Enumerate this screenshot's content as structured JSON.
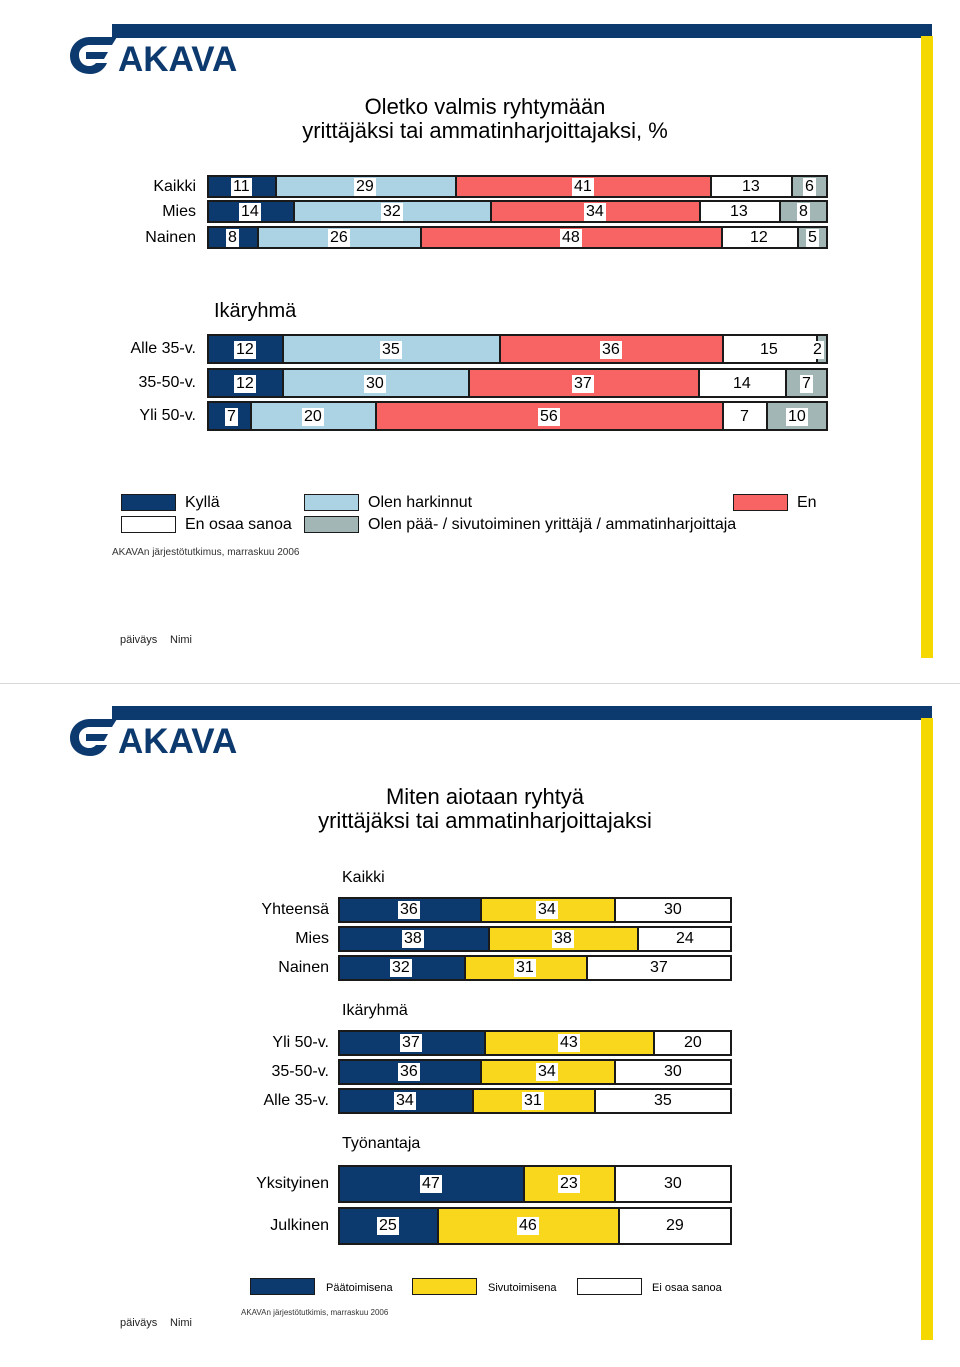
{
  "brand": {
    "logo_text": "AKAVA",
    "colors": {
      "navy": "#0d3a6e",
      "yellow": "#f5d800"
    }
  },
  "slide1": {
    "title_line1": "Oletko valmis ryhtymään",
    "title_line2": "yrittäjäksi tai ammatinharjoittajaksi, %",
    "age_heading": "Ikäryhmä",
    "source": "AKAVAn järjestötutkimus, marraskuu 2006",
    "footer_date": "päiväys",
    "footer_name": "Nimi",
    "legend": [
      {
        "label": "Kyllä",
        "color": "#0d3a6e"
      },
      {
        "label": "Olen harkinnut",
        "color": "#abd3e3"
      },
      {
        "label": "En",
        "color": "#f86464"
      },
      {
        "label": "En osaa sanoa",
        "color": "#ffffff"
      },
      {
        "label": "Olen pää- / sivutoiminen yrittäjä / ammatinharjoittaja",
        "color": "#a2b6b5"
      }
    ]
  },
  "slide2": {
    "title_line1": "Miten aiotaan ryhtyä",
    "title_line2": "yrittäjäksi tai ammatinharjoittajaksi",
    "group_total": "Kaikki",
    "group_age": "Ikäryhmä",
    "group_employer": "Työnantaja",
    "source": "AKAVAn järjestötutkimis, marraskuu 2006",
    "footer_date": "päiväys",
    "footer_name": "Nimi",
    "legend": [
      {
        "label": "Päätoimisena",
        "color": "#0d3a6e"
      },
      {
        "label": "Sivutoimisena",
        "color": "#f9d71c"
      },
      {
        "label": "Ei osaa sanoa",
        "color": "#ffffff"
      }
    ]
  },
  "chart_data": [
    {
      "type": "bar",
      "orientation": "horizontal",
      "stacked": true,
      "percent": true,
      "title": "Oletko valmis ryhtymään yrittäjäksi tai ammatinharjoittajaksi, %",
      "series": [
        {
          "name": "Kyllä",
          "color": "#0d3a6e"
        },
        {
          "name": "Olen harkinnut",
          "color": "#abd3e3"
        },
        {
          "name": "En",
          "color": "#f86464"
        },
        {
          "name": "En osaa sanoa",
          "color": "#ffffff"
        },
        {
          "name": "Olen pää- / sivutoiminen yrittäjä / ammatinharjoittaja",
          "color": "#a2b6b5"
        }
      ],
      "groups": [
        {
          "heading": "",
          "rows": [
            {
              "label": "Kaikki",
              "values": [
                11,
                29,
                41,
                13,
                6
              ]
            },
            {
              "label": "Mies",
              "values": [
                14,
                32,
                34,
                13,
                8
              ]
            },
            {
              "label": "Nainen",
              "values": [
                8,
                26,
                48,
                12,
                5
              ]
            }
          ]
        },
        {
          "heading": "Ikäryhmä",
          "rows": [
            {
              "label": "Alle 35-v.",
              "values": [
                12,
                35,
                36,
                15,
                2
              ]
            },
            {
              "label": "35-50-v.",
              "values": [
                12,
                30,
                37,
                14,
                7
              ]
            },
            {
              "label": "Yli 50-v.",
              "values": [
                7,
                20,
                56,
                7,
                10
              ]
            }
          ]
        }
      ]
    },
    {
      "type": "bar",
      "orientation": "horizontal",
      "stacked": true,
      "percent": true,
      "title": "Miten aiotaan ryhtyä yrittäjäksi tai ammatinharjoittajaksi",
      "series": [
        {
          "name": "Päätoimisena",
          "color": "#0d3a6e"
        },
        {
          "name": "Sivutoimisena",
          "color": "#f9d71c"
        },
        {
          "name": "Ei osaa sanoa",
          "color": "#ffffff"
        }
      ],
      "groups": [
        {
          "heading": "Kaikki",
          "rows": [
            {
              "label": "Yhteensä",
              "values": [
                36,
                34,
                30
              ]
            },
            {
              "label": "Mies",
              "values": [
                38,
                38,
                24
              ]
            },
            {
              "label": "Nainen",
              "values": [
                32,
                31,
                37
              ]
            }
          ]
        },
        {
          "heading": "Ikäryhmä",
          "rows": [
            {
              "label": "Yli 50-v.",
              "values": [
                37,
                43,
                20
              ]
            },
            {
              "label": "35-50-v.",
              "values": [
                36,
                34,
                30
              ]
            },
            {
              "label": "Alle 35-v.",
              "values": [
                34,
                31,
                35
              ]
            }
          ]
        },
        {
          "heading": "Työnantaja",
          "rows": [
            {
              "label": "Yksityinen",
              "values": [
                47,
                23,
                30
              ]
            },
            {
              "label": "Julkinen",
              "values": [
                25,
                46,
                29
              ]
            }
          ]
        }
      ]
    }
  ]
}
